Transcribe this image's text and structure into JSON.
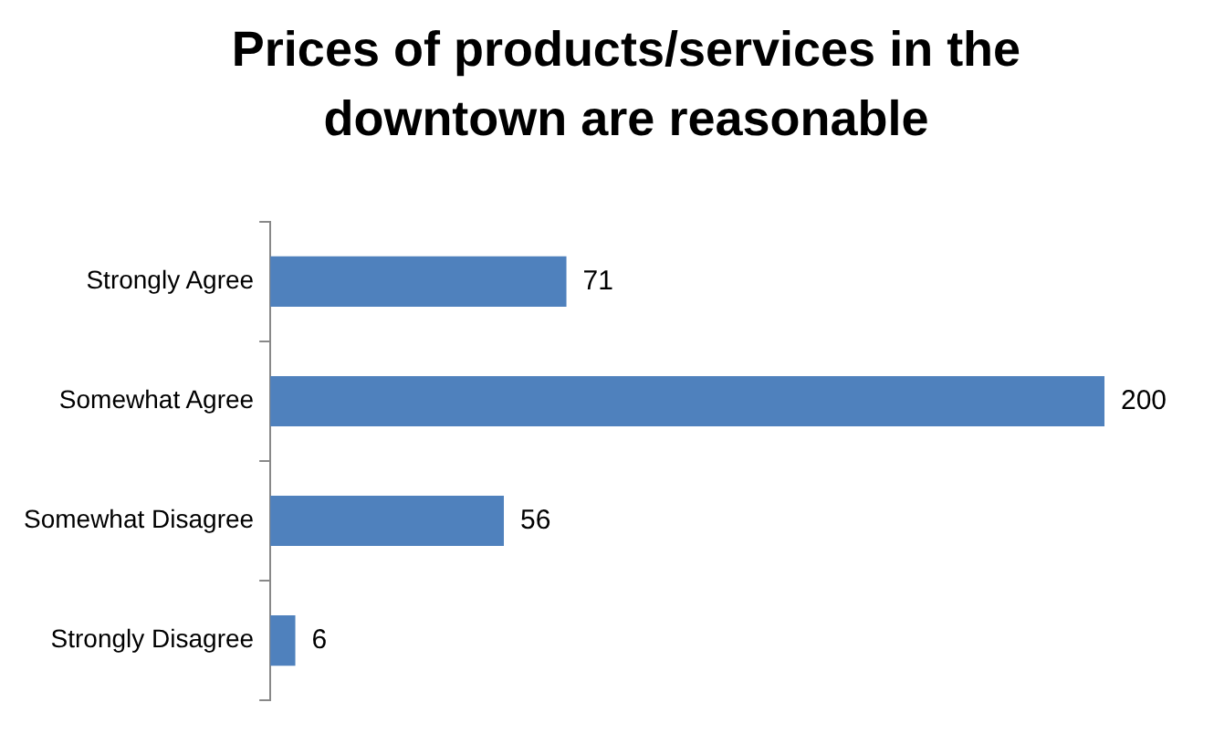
{
  "chart_data": {
    "type": "bar",
    "orientation": "horizontal",
    "title": "Prices of products/services in the downtown are reasonable",
    "categories": [
      "Strongly Agree",
      "Somewhat Agree",
      "Somewhat Disagree",
      "Strongly Disagree"
    ],
    "values": [
      71,
      200,
      56,
      6
    ],
    "color": "#4f81bd",
    "data_labels": true
  }
}
